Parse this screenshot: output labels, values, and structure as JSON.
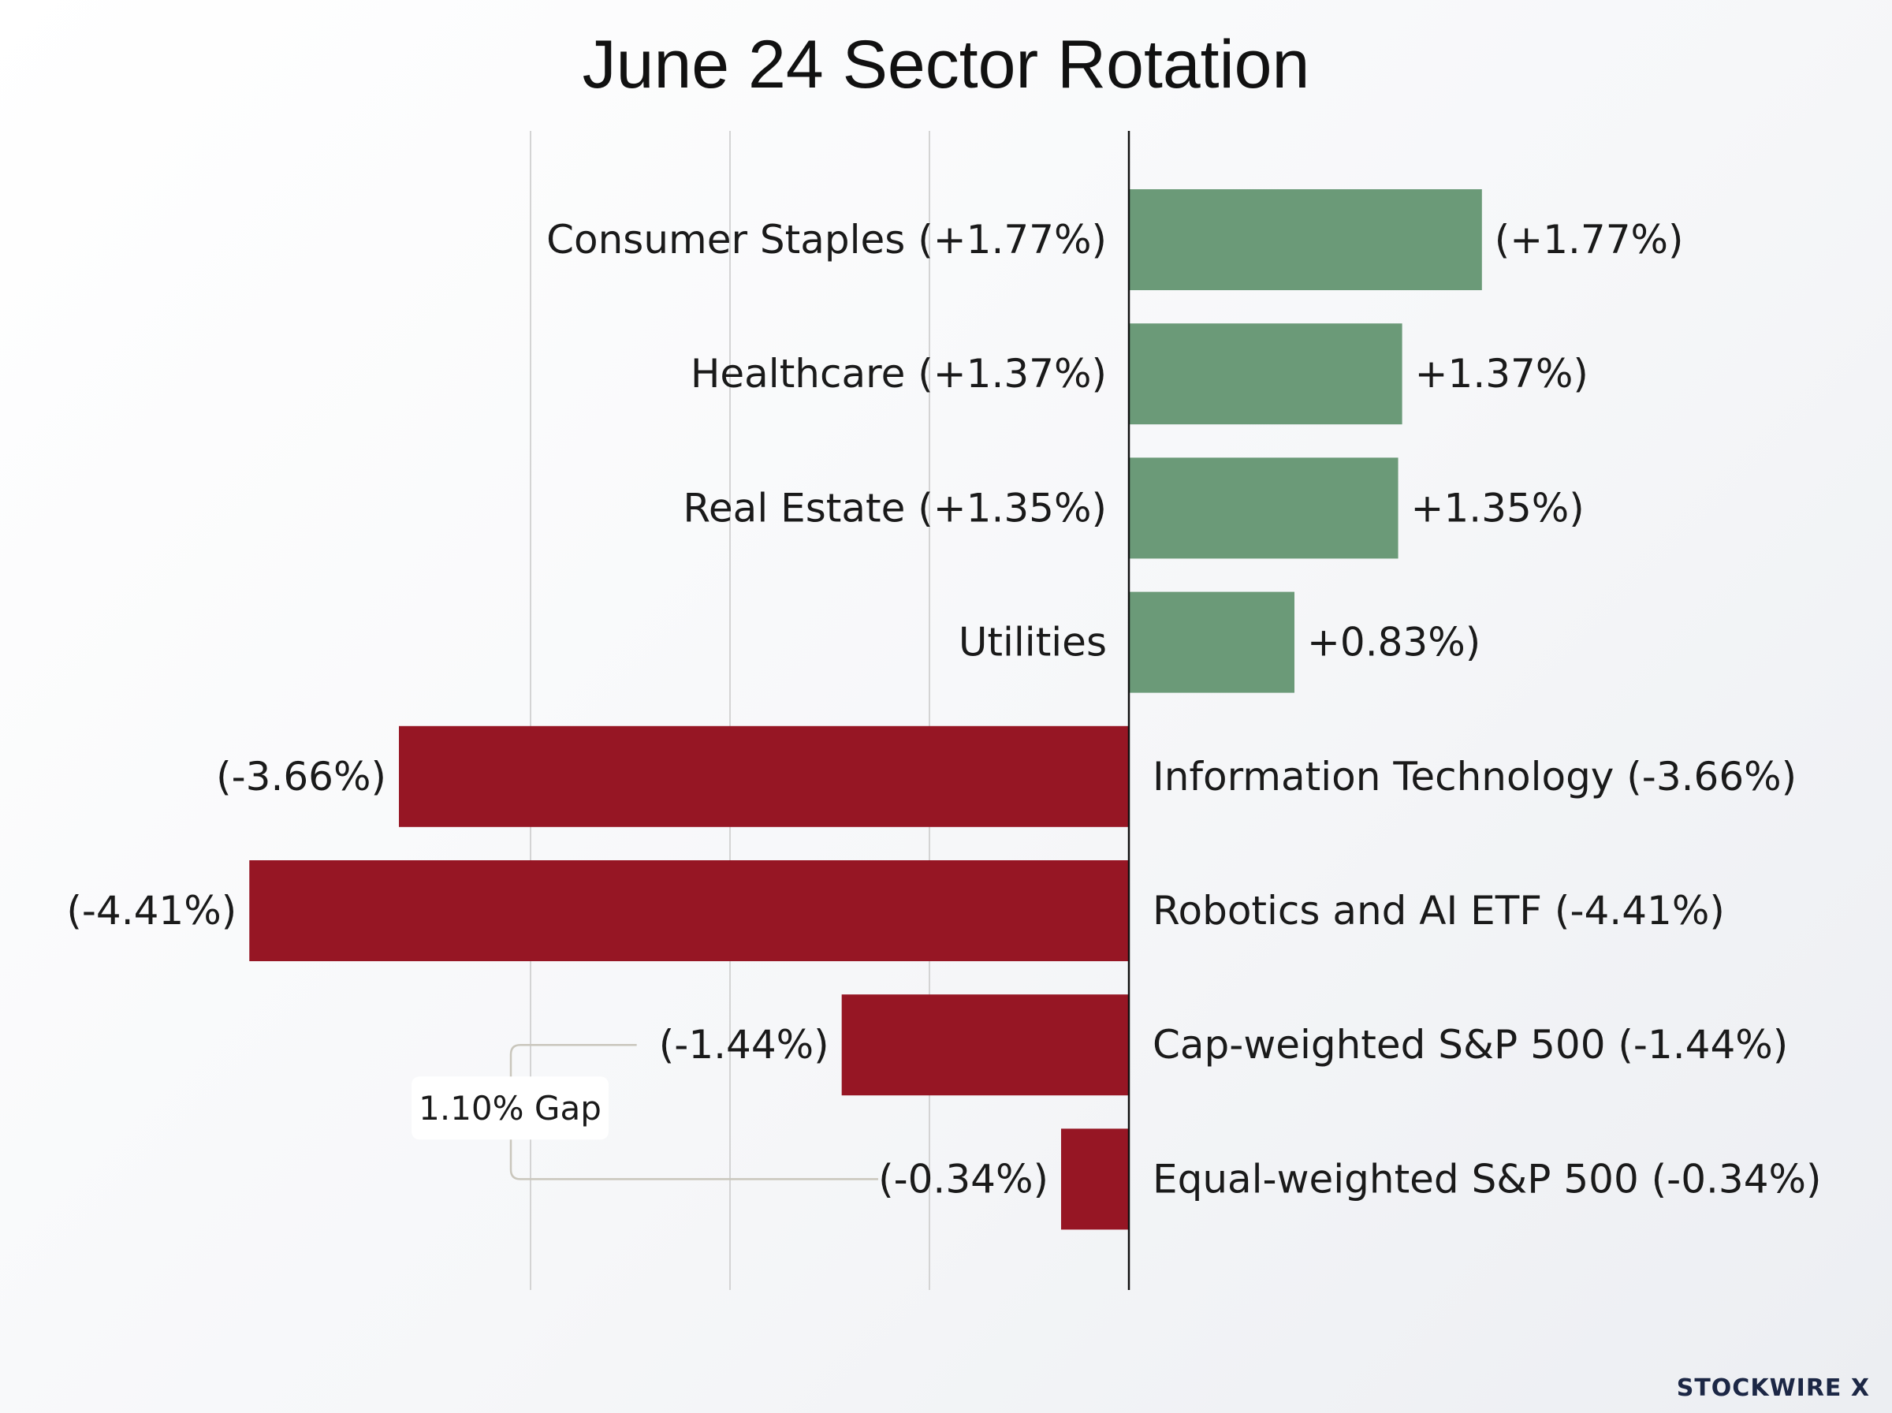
{
  "title": "June 24 Sector Rotation",
  "brand": "STOCKWIRE X",
  "colors": {
    "positive": "#6b9a78",
    "negative": "#961624",
    "zero_line": "#111111",
    "grid": "#d4d4d4",
    "bracket": "#c9c6bc"
  },
  "chart_data": {
    "type": "bar",
    "orientation": "horizontal",
    "title": "June 24 Sector Rotation",
    "xlabel": "",
    "ylabel": "",
    "xlim": [
      -4.95,
      3.0
    ],
    "grid": true,
    "gridlines_x": [
      -3.0,
      -2.0,
      -1.0
    ],
    "legend": "none",
    "categories": [
      "Consumer Staples (+1.77%)",
      "Healthcare (+1.37%)",
      "Real Estate (+1.35%)",
      "Utilities",
      "Information Technology (-3.66%)",
      "Robotics and AI ETF (-4.41%)",
      "Cap-weighted S&P 500 (-1.44%)",
      "Equal-weighted S&P 500 (-0.34%)"
    ],
    "values": [
      1.77,
      1.37,
      1.35,
      0.83,
      -3.66,
      -4.41,
      -1.44,
      -0.34
    ],
    "value_labels": [
      "(+1.77%)",
      "+1.37%)",
      "+1.35%)",
      "+0.83%)",
      "(-3.66%)",
      "(-4.41%)",
      "(-1.44%)",
      "(-0.34%)"
    ],
    "annotations": [
      {
        "text": "1.10% Gap",
        "between": [
          "Cap-weighted S&P 500 (-1.44%)",
          "Equal-weighted S&P 500 (-0.34%)"
        ]
      }
    ]
  }
}
